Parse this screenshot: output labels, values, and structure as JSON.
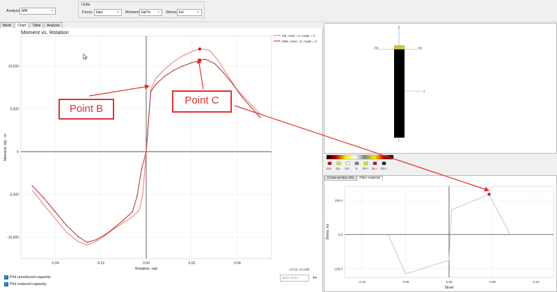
{
  "toolbar": {
    "analysis_label": "Analysis:",
    "analysis_value": "MR",
    "units_title": "Units",
    "force_label": "Force:",
    "force_value": "kips",
    "moment_label": "Moment:",
    "moment_value": "kip*in",
    "stress_label": "Stress:",
    "stress_value": "ksi"
  },
  "tabs": [
    "Mesh",
    "Chart",
    "Table",
    "Analysis"
  ],
  "active_tab": "Chart",
  "chart_data": [
    {
      "type": "line",
      "title": "Moment vs. Rotation",
      "xlabel": "Rotation, rad",
      "ylabel": "Moment, kip - in",
      "xlim": [
        -0.055,
        0.055
      ],
      "ylim": [
        -12500,
        13500
      ],
      "xticks": [
        -0.04,
        -0.02,
        0.0,
        0.02,
        0.04
      ],
      "xtick_labels": [
        "-0.04",
        "-0.02",
        "0.00",
        "0.02",
        "0.04"
      ],
      "yticks": [
        -10000,
        -5000,
        0,
        5000,
        10000
      ],
      "ytick_labels": [
        "-10,000",
        "-5,000",
        "0",
        "5,000",
        "10,000"
      ],
      "grid": true,
      "legend": "top-right",
      "series": [
        {
          "name": "Mk, Axial = 0, Angle = 0",
          "color": "#f08a8a",
          "x": [
            -0.05,
            -0.045,
            -0.04,
            -0.035,
            -0.03,
            -0.026,
            -0.022,
            -0.018,
            -0.014,
            -0.01,
            -0.006,
            -0.003,
            -0.0015,
            0.0,
            0.002,
            0.004,
            0.008,
            0.012,
            0.016,
            0.02,
            0.022,
            0.025,
            0.028,
            0.032,
            0.036,
            0.04,
            0.045,
            0.05
          ],
          "y": [
            -4500,
            -6200,
            -7800,
            -9400,
            -10500,
            -10900,
            -10500,
            -9800,
            -9000,
            -8300,
            -7600,
            -6800,
            -5000,
            0,
            7200,
            8500,
            9600,
            10500,
            11200,
            11700,
            11900,
            12000,
            11800,
            10500,
            8800,
            7200,
            5800,
            4400
          ]
        },
        {
          "name": "øMk, Axial = 0, Angle = 0",
          "color": "#c04848",
          "x": [
            -0.05,
            -0.045,
            -0.04,
            -0.035,
            -0.03,
            -0.026,
            -0.022,
            -0.018,
            -0.014,
            -0.01,
            -0.006,
            -0.004,
            -0.002,
            0.0,
            0.002,
            0.004,
            0.008,
            0.012,
            0.016,
            0.02,
            0.024,
            0.026,
            0.03,
            0.034,
            0.038,
            0.042,
            0.046,
            0.05
          ],
          "y": [
            -4000,
            -5400,
            -7000,
            -8600,
            -9900,
            -10600,
            -10300,
            -9700,
            -8900,
            -8000,
            -7000,
            -5200,
            -2000,
            0,
            7000,
            7800,
            8800,
            9500,
            10000,
            10400,
            10700,
            10800,
            10300,
            9200,
            7900,
            6400,
            5200,
            4000
          ]
        }
      ],
      "markers": [
        {
          "x": 0.0235,
          "y": 12000
        },
        {
          "x": 0.0235,
          "y": 10700
        }
      ],
      "cursor_readout": "(-0.03, 11,129)"
    },
    {
      "type": "line",
      "xlabel": "Strain",
      "ylabel": "Stress, ksi",
      "xlim": [
        -0.12,
        0.12
      ],
      "ylim": [
        -125,
        140
      ],
      "xticks": [
        -0.1,
        -0.05,
        0.0,
        0.05,
        0.1
      ],
      "xtick_labels": [
        "-0.10",
        "-0.05",
        "0.00",
        "0.05",
        "0.10"
      ],
      "yticks": [
        -100,
        0,
        100
      ],
      "ytick_labels": [
        "-100.0",
        "0.0",
        "100.0"
      ],
      "grid": true,
      "series": [
        {
          "color": "#c8c8c8",
          "x": [
            -0.07,
            -0.05,
            0.0,
            0.003,
            0.04,
            0.046,
            0.07
          ],
          "y": [
            0,
            -115,
            -75,
            72,
            110,
            117,
            0
          ]
        }
      ],
      "markers": [
        {
          "x": 0.046,
          "y": 117
        }
      ]
    }
  ],
  "section": {
    "axis_y": "y",
    "axis_z": "z",
    "label_left": "na",
    "label_right": "na",
    "strain_legend": [
      "DX-",
      "DL-",
      "DY-",
      "0",
      "DY+",
      "DL+",
      "DX+"
    ],
    "legend_colors": [
      "#000000",
      "#c00000",
      "#f0f000",
      "#ffffff",
      "#808080",
      "#f0f000",
      "#d00000",
      "#000000"
    ]
  },
  "subtabs": [
    "Cross-section info",
    "Fiber material"
  ],
  "active_subtab": "Fiber material",
  "options": {
    "plot_unreduced": "Plot unreduced capacity",
    "plot_reduced": "Plot reduced capacity"
  },
  "search_placeholder": "Base name",
  "callouts": {
    "point_b": "Point B",
    "point_c": "Point C"
  }
}
